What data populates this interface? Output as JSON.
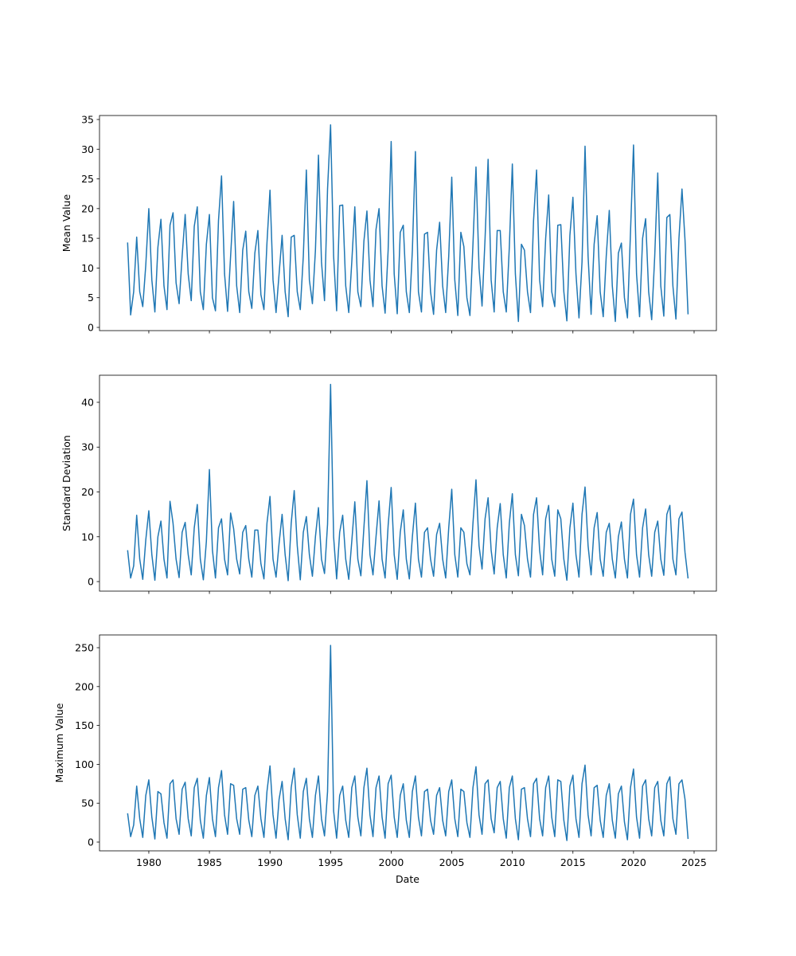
{
  "chart_data": {
    "type": "line",
    "xlabel": "Date",
    "xlim": [
      1975.93,
      2026.84
    ],
    "xticks": [
      1980,
      1985,
      1990,
      1995,
      2000,
      2005,
      2010,
      2015,
      2020,
      2025
    ],
    "x": [
      1978.25,
      1978.5,
      1978.75,
      1979,
      1979.25,
      1979.5,
      1979.75,
      1980,
      1980.25,
      1980.5,
      1980.75,
      1981,
      1981.25,
      1981.5,
      1981.75,
      1982,
      1982.25,
      1982.5,
      1982.75,
      1983,
      1983.25,
      1983.5,
      1983.75,
      1984,
      1984.25,
      1984.5,
      1984.75,
      1985,
      1985.25,
      1985.5,
      1985.75,
      1986,
      1986.25,
      1986.5,
      1986.75,
      1987,
      1987.25,
      1987.5,
      1987.75,
      1988,
      1988.25,
      1988.5,
      1988.75,
      1989,
      1989.25,
      1989.5,
      1989.75,
      1990,
      1990.25,
      1990.5,
      1990.75,
      1991,
      1991.25,
      1991.5,
      1991.75,
      1992,
      1992.25,
      1992.5,
      1992.75,
      1993,
      1993.25,
      1993.5,
      1993.75,
      1994,
      1994.25,
      1994.5,
      1994.75,
      1995,
      1995.25,
      1995.5,
      1995.75,
      1996,
      1996.25,
      1996.5,
      1996.75,
      1997,
      1997.25,
      1997.5,
      1997.75,
      1998,
      1998.25,
      1998.5,
      1998.75,
      1999,
      1999.25,
      1999.5,
      1999.75,
      2000,
      2000.25,
      2000.5,
      2000.75,
      2001,
      2001.25,
      2001.5,
      2001.75,
      2002,
      2002.25,
      2002.5,
      2002.75,
      2003,
      2003.25,
      2003.5,
      2003.75,
      2004,
      2004.25,
      2004.5,
      2004.75,
      2005,
      2005.25,
      2005.5,
      2005.75,
      2006,
      2006.25,
      2006.5,
      2006.75,
      2007,
      2007.25,
      2007.5,
      2007.75,
      2008,
      2008.25,
      2008.5,
      2008.75,
      2009,
      2009.25,
      2009.5,
      2009.75,
      2010,
      2010.25,
      2010.5,
      2010.75,
      2011,
      2011.25,
      2011.5,
      2011.75,
      2012,
      2012.25,
      2012.5,
      2012.75,
      2013,
      2013.25,
      2013.5,
      2013.75,
      2014,
      2014.25,
      2014.5,
      2014.75,
      2015,
      2015.25,
      2015.5,
      2015.75,
      2016,
      2016.25,
      2016.5,
      2016.75,
      2017,
      2017.25,
      2017.5,
      2017.75,
      2018,
      2018.25,
      2018.5,
      2018.75,
      2019,
      2019.25,
      2019.5,
      2019.75,
      2020,
      2020.25,
      2020.5,
      2020.75,
      2021,
      2021.25,
      2021.5,
      2021.75,
      2022,
      2022.25,
      2022.5,
      2022.75,
      2023,
      2023.25,
      2023.5,
      2023.75,
      2024,
      2024.25,
      2024.5
    ],
    "panels": [
      {
        "ylabel": "Mean Value",
        "ylim": [
          -0.54,
          35.67
        ],
        "yticks": [
          0,
          5,
          10,
          15,
          20,
          25,
          30,
          35
        ],
        "series": [
          {
            "color": "#1f77b4",
            "values": [
              14.3,
              2.1,
              6,
              15.2,
              6,
              3.5,
              10.5,
              20,
              8,
              2.6,
              13.5,
              18.2,
              7,
              3,
              17.2,
              19.3,
              7.5,
              4,
              12,
              19,
              9,
              4.5,
              17,
              20.3,
              6,
              3,
              14,
              19,
              5,
              2.8,
              18,
              25.5,
              9,
              2.7,
              12,
              21.2,
              7,
              2.5,
              13,
              16.2,
              6,
              3.2,
              12.5,
              16.3,
              5.5,
              3,
              14.2,
              23.1,
              8,
              2.5,
              9,
              15.5,
              6,
              1.8,
              15.2,
              15.5,
              6,
              3,
              12,
              26.5,
              8,
              4,
              13,
              29,
              11,
              4.5,
              23.3,
              34.1,
              12,
              2.8,
              20.5,
              20.6,
              7,
              2.5,
              11,
              20.3,
              6,
              3.5,
              14.5,
              19.6,
              8,
              3.5,
              16.5,
              20,
              7,
              2.4,
              13,
              31.3,
              9,
              2.3,
              16,
              17.2,
              6,
              2.5,
              13,
              29.6,
              6,
              2.6,
              15.7,
              16,
              6,
              2.2,
              13,
              17.7,
              7,
              2.5,
              12,
              25.3,
              8,
              2,
              16,
              13.6,
              5,
              2,
              14,
              27,
              10,
              3.6,
              15,
              28.3,
              8,
              2.6,
              16.3,
              16.3,
              6,
              2.6,
              13.5,
              27.5,
              9,
              1,
              14,
              13,
              6,
              2.5,
              18,
              26.5,
              8,
              3.5,
              15,
              22.3,
              6,
              3.5,
              17.2,
              17.3,
              6,
              1.1,
              15.5,
              21.9,
              9,
              1.6,
              11,
              30.5,
              12,
              2.2,
              14,
              18.8,
              6,
              1.8,
              12,
              19.7,
              7,
              1,
              12.5,
              14.2,
              5,
              1.6,
              16,
              30.7,
              9,
              1.8,
              15,
              18.3,
              6,
              1.3,
              12,
              26,
              7,
              1.9,
              18.5,
              19,
              7,
              1.4,
              15,
              23.3,
              14.7,
              2.2
            ]
          }
        ]
      },
      {
        "ylabel": "Standard Deviation",
        "ylim": [
          -2.13,
          46.04
        ],
        "yticks": [
          0,
          10,
          20,
          30,
          40
        ],
        "series": [
          {
            "color": "#1f77b4",
            "values": [
              7,
              0.8,
              3.5,
              14.8,
              5,
              0.5,
              9.3,
              15.8,
              6,
              0.3,
              10,
              13.5,
              5,
              0.8,
              17.9,
              13,
              5,
              0.9,
              11,
              13.2,
              6,
              1.5,
              12,
              17.2,
              5,
              0.4,
              9,
              25,
              7,
              0.8,
              12,
              14,
              5,
              1.5,
              15.3,
              11.8,
              5,
              1.7,
              11,
              12.5,
              5,
              1,
              11.5,
              11.5,
              4,
              0.6,
              13,
              19,
              5,
              1,
              8.5,
              15,
              6,
              0.2,
              13,
              20.3,
              8,
              0.4,
              11,
              14.5,
              6,
              1.2,
              10,
              16.5,
              5,
              1.8,
              12.8,
              44,
              10,
              0.6,
              11,
              14.8,
              5,
              0.5,
              9,
              17.8,
              5,
              1.3,
              12,
              22.5,
              6,
              1.5,
              10,
              18,
              5,
              0.8,
              12.5,
              21,
              6,
              0.5,
              11,
              16,
              5,
              0.6,
              10,
              17.5,
              5,
              1,
              11,
              12,
              5,
              1.2,
              10.5,
              13,
              5,
              0.8,
              12,
              20.6,
              6,
              1,
              12,
              11,
              4,
              1.5,
              13,
              22.7,
              8,
              2.8,
              14,
              18.7,
              7,
              1.7,
              12,
              17.4,
              6,
              0.8,
              13,
              19.6,
              6,
              1.3,
              15,
              12.5,
              5,
              1,
              15,
              18.7,
              7,
              1.5,
              14,
              17,
              5,
              1.2,
              16,
              14,
              5,
              0.3,
              12,
              17.5,
              6,
              1,
              15,
              21.1,
              8,
              1.5,
              12,
              15.4,
              5,
              1.2,
              11,
              13,
              5,
              0.8,
              10,
              13.3,
              5,
              0.8,
              15,
              18.4,
              6,
              1,
              12,
              16.2,
              6,
              1.2,
              11,
              13.5,
              5,
              1.4,
              15,
              17,
              5,
              1.5,
              14,
              15.5,
              6.5,
              0.7
            ]
          }
        ]
      },
      {
        "ylabel": "Maximum Value",
        "ylim": [
          -11.27,
          266.4
        ],
        "yticks": [
          0,
          50,
          100,
          150,
          200,
          250
        ],
        "series": [
          {
            "color": "#1f77b4",
            "values": [
              37,
              7,
              22,
              72,
              30,
              6,
              60,
              80,
              32,
              4,
              65,
              62,
              25,
              5,
              75,
              80,
              30,
              10,
              68,
              77,
              30,
              8,
              70,
              82,
              28,
              5,
              60,
              83,
              30,
              7,
              70,
              92,
              35,
              10,
              75,
              73,
              30,
              10,
              68,
              70,
              28,
              7,
              60,
              72,
              30,
              6,
              65,
              98,
              35,
              5,
              55,
              78,
              30,
              3,
              70,
              95,
              35,
              5,
              65,
              82,
              30,
              6,
              60,
              85,
              30,
              8,
              65,
              253,
              40,
              5,
              60,
              72,
              28,
              6,
              70,
              85,
              32,
              8,
              70,
              95,
              35,
              7,
              70,
              85,
              32,
              5,
              75,
              86,
              32,
              6,
              60,
              75,
              28,
              6,
              65,
              85,
              32,
              8,
              65,
              68,
              28,
              10,
              60,
              70,
              28,
              8,
              65,
              80,
              30,
              7,
              68,
              65,
              25,
              6,
              70,
              97,
              35,
              10,
              75,
              80,
              30,
              12,
              70,
              78,
              30,
              5,
              70,
              85,
              30,
              3,
              68,
              70,
              30,
              7,
              75,
              82,
              30,
              8,
              70,
              85,
              32,
              7,
              80,
              78,
              28,
              2,
              72,
              86,
              30,
              6,
              75,
              99,
              35,
              8,
              70,
              73,
              28,
              6,
              60,
              75,
              28,
              5,
              62,
              72,
              26,
              3,
              70,
              94,
              32,
              5,
              72,
              80,
              30,
              8,
              70,
              78,
              28,
              8,
              75,
              84,
              30,
              10,
              75,
              80,
              55,
              4
            ]
          }
        ]
      }
    ]
  }
}
